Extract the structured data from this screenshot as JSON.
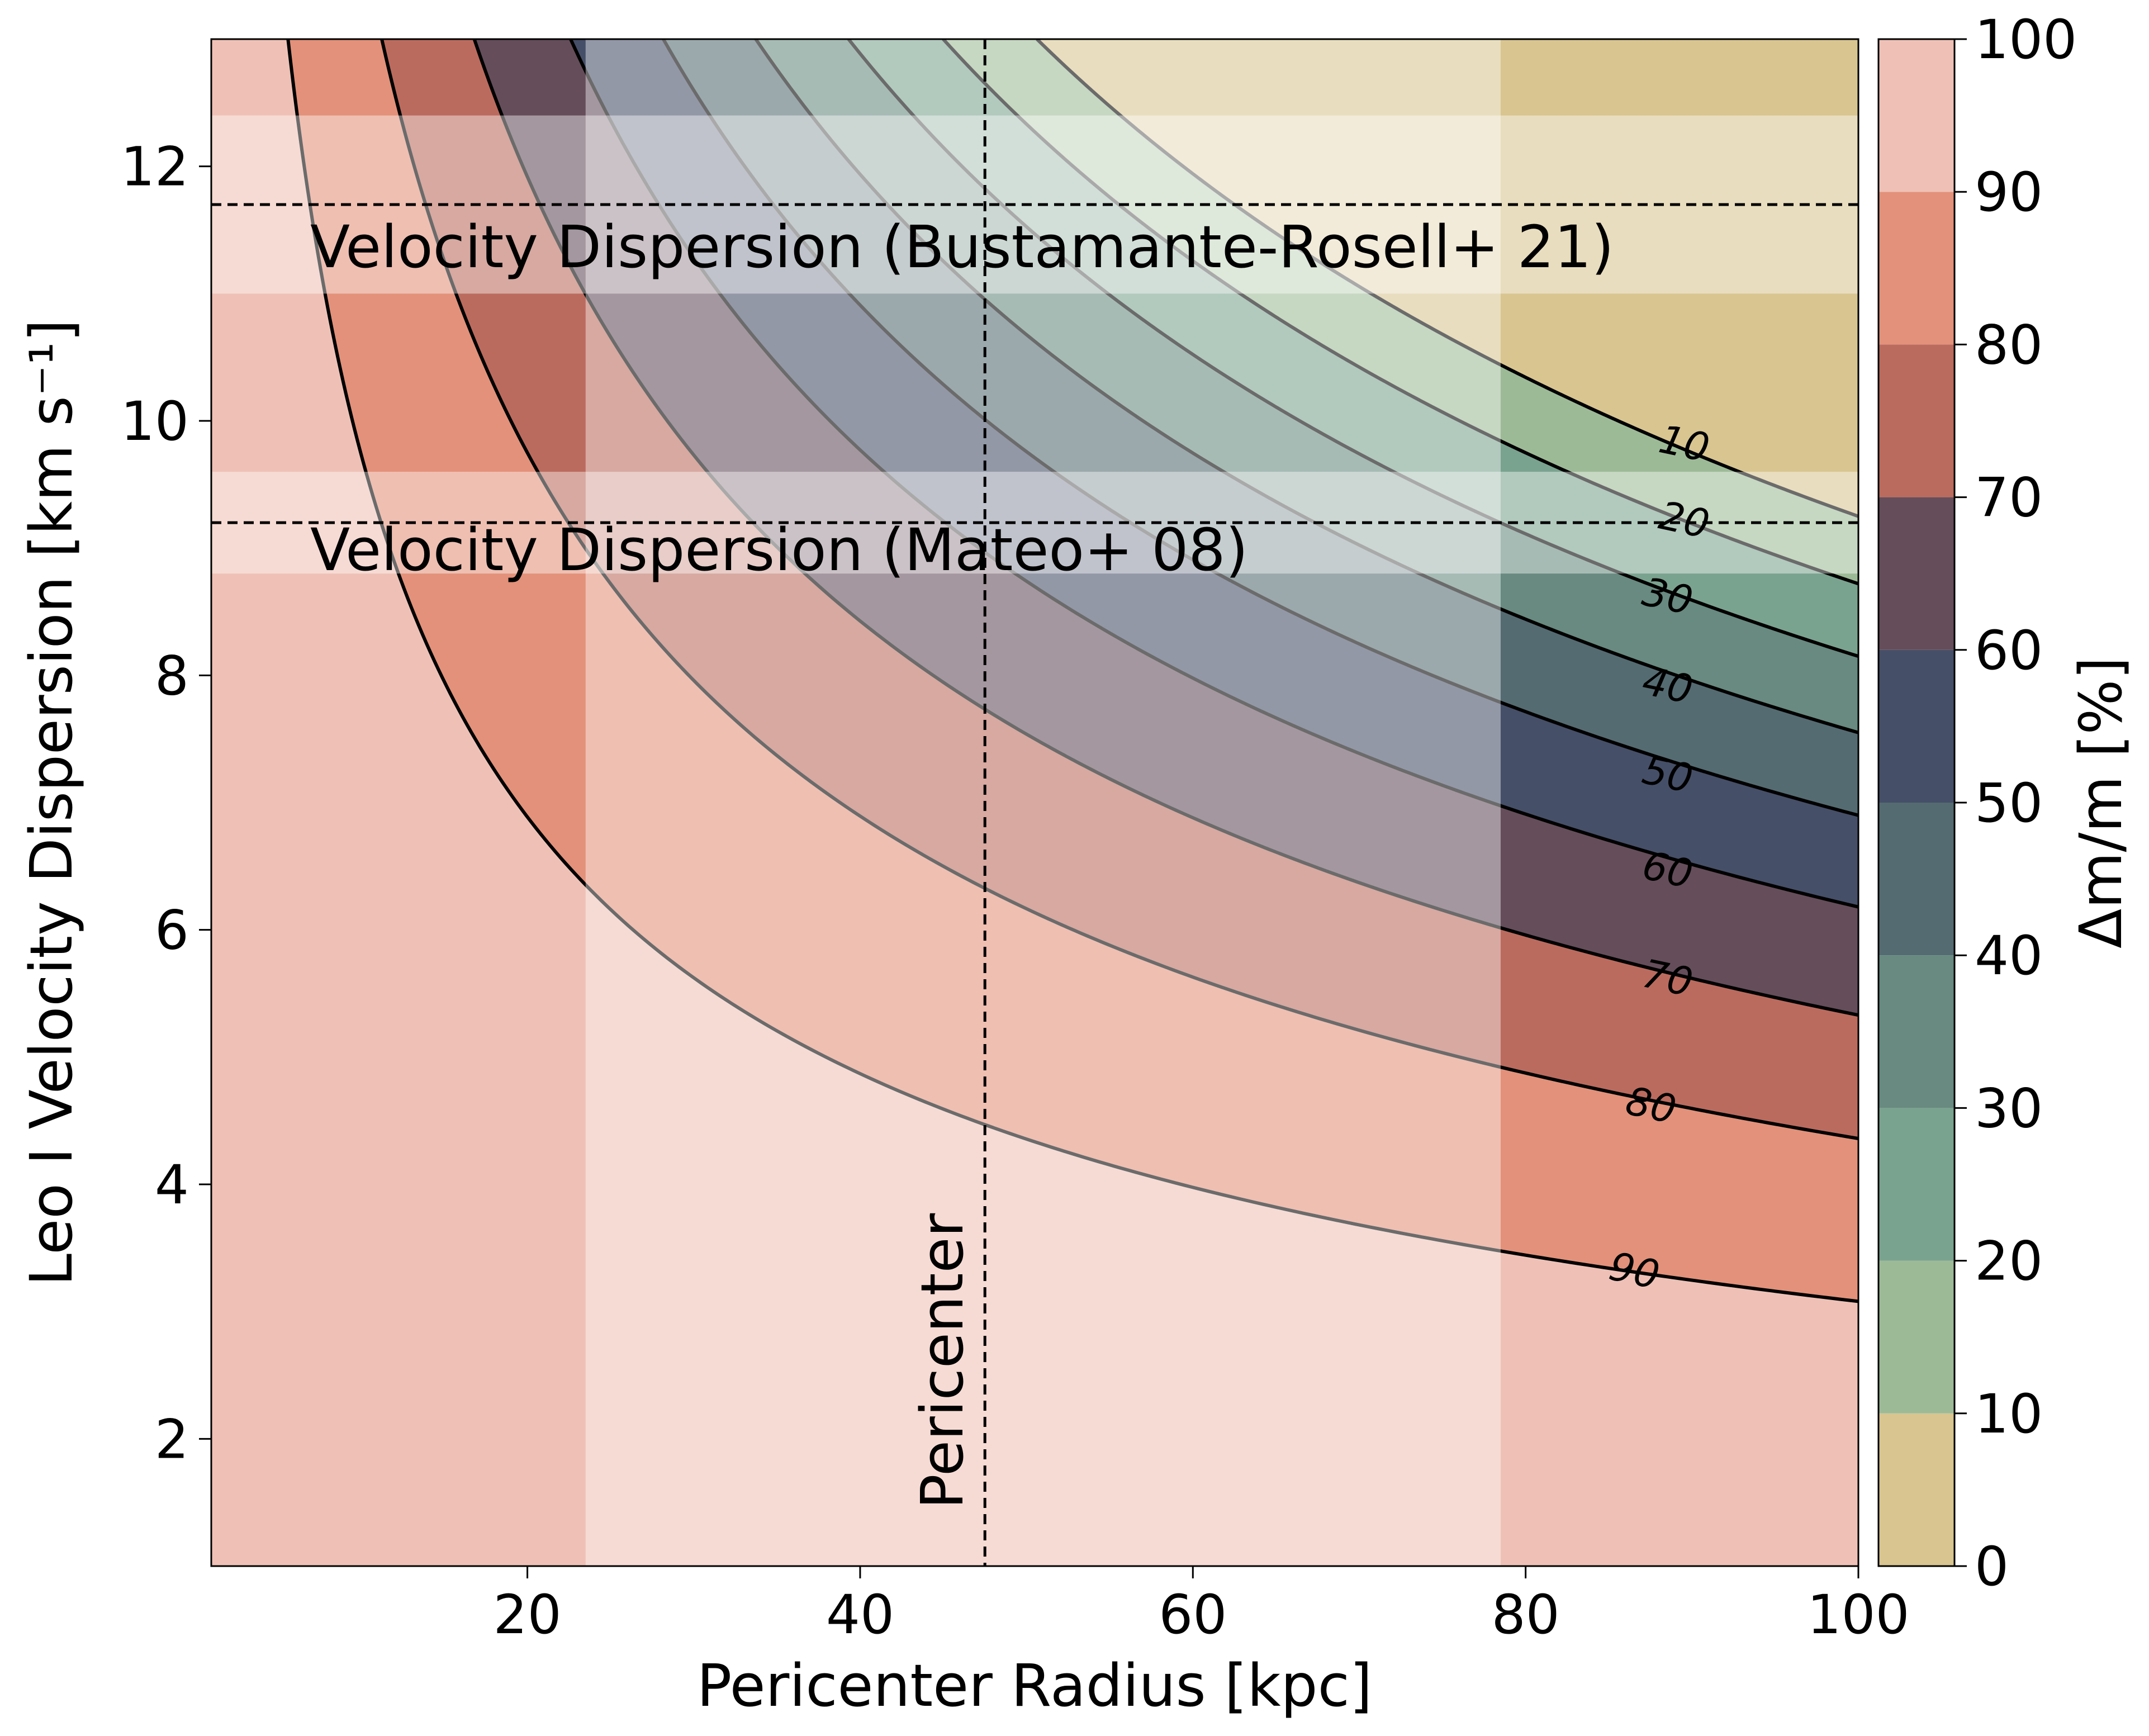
{
  "chart_data": {
    "type": "contourf",
    "title": "",
    "xlabel": "Pericenter Radius [kpc]",
    "ylabel": "Leo I Velocity Dispersion [km s⁻¹]",
    "xlim": [
      1,
      100
    ],
    "ylim": [
      1,
      13
    ],
    "xticks": [
      20,
      40,
      60,
      80,
      100
    ],
    "xtick_labels": [
      "20",
      "40",
      "60",
      "80",
      "100"
    ],
    "yticks": [
      2,
      4,
      6,
      8,
      10,
      12
    ],
    "ytick_labels": [
      "2",
      "4",
      "6",
      "8",
      "10",
      "12"
    ],
    "colorbar": {
      "label": "Δm/m [%]",
      "range": [
        0,
        100
      ],
      "ticks": [
        0,
        10,
        20,
        30,
        40,
        50,
        60,
        70,
        80,
        90,
        100
      ],
      "tick_labels": [
        "0",
        "10",
        "20",
        "30",
        "40",
        "50",
        "60",
        "70",
        "80",
        "90",
        "100"
      ],
      "level_colors": [
        "#d8c590",
        "#9dba97",
        "#7aa38f",
        "#688a80",
        "#546b71",
        "#464f68",
        "#654d5a",
        "#bb6b5e",
        "#e3917a",
        "#efc1b6"
      ]
    },
    "contour_levels": [
      10,
      20,
      30,
      40,
      50,
      60,
      70,
      80,
      90
    ],
    "contour_label_text": [
      "10",
      "20",
      "30",
      "40",
      "50",
      "60",
      "70",
      "80",
      "90"
    ],
    "contour_sigma_at_r100": [
      9.25,
      8.72,
      8.15,
      7.55,
      6.9,
      6.18,
      5.33,
      4.36,
      3.08
    ],
    "contour_label_positions": [
      {
        "level": 10,
        "x": 89.5,
        "y": 9.8
      },
      {
        "level": 20,
        "x": 89.5,
        "y": 9.2
      },
      {
        "level": 30,
        "x": 88.5,
        "y": 8.6
      },
      {
        "level": 40,
        "x": 88.5,
        "y": 7.9
      },
      {
        "level": 50,
        "x": 88.5,
        "y": 7.2
      },
      {
        "level": 60,
        "x": 88.5,
        "y": 6.45
      },
      {
        "level": 70,
        "x": 88.5,
        "y": 5.6
      },
      {
        "level": 80,
        "x": 87.5,
        "y": 4.6
      },
      {
        "level": 90,
        "x": 86.5,
        "y": 3.3
      }
    ],
    "pericenter_band": {
      "x_min": 23.5,
      "x_max": 78.5,
      "x_line": 47.5,
      "label": "Pericenter"
    },
    "dispersion_bands": [
      {
        "label": "Velocity Dispersion (Bustamante-Rosell+ 21)",
        "y_line": 11.7,
        "y_min": 11.0,
        "y_max": 12.4
      },
      {
        "label": "Velocity Dispersion (Mateo+ 08)",
        "y_line": 9.2,
        "y_min": 8.8,
        "y_max": 9.6
      }
    ]
  }
}
